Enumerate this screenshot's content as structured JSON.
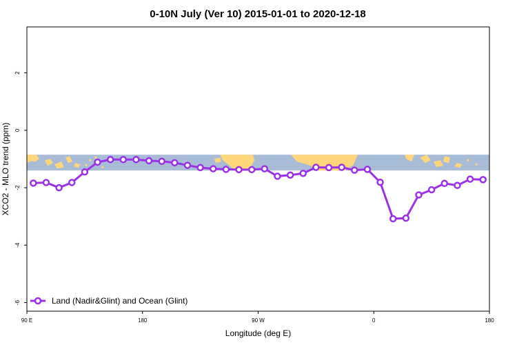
{
  "chart_data": {
    "type": "line",
    "title": "0-10N July (Ver 10)   2015-01-01 to 2020-12-18",
    "xlabel": "Longitude (deg E)",
    "ylabel": "XCO2 - MLO trend (ppm)",
    "xlim": [
      90,
      450
    ],
    "ylim": [
      -6.3,
      3.6
    ],
    "x_ticks": [
      {
        "value": 90,
        "label": "90 E"
      },
      {
        "value": 180,
        "label": "180"
      },
      {
        "value": 270,
        "label": "90 W"
      },
      {
        "value": 360,
        "label": "0"
      },
      {
        "value": 450,
        "label": "180"
      }
    ],
    "y_ticks": [
      {
        "value": 2,
        "label": "2"
      },
      {
        "value": 0,
        "label": "0"
      },
      {
        "value": -2,
        "label": "-2"
      },
      {
        "value": -4,
        "label": "-4"
      },
      {
        "value": -6,
        "label": "-6"
      }
    ],
    "series": [
      {
        "name": "Land (Nadir&Glint) and Ocean (Glint)",
        "color": "#9b30e6",
        "x": [
          95,
          105,
          115,
          125,
          135,
          145,
          155,
          165,
          175,
          185,
          195,
          205,
          215,
          225,
          235,
          245,
          255,
          265,
          275,
          285,
          295,
          305,
          315,
          325,
          335,
          345,
          355,
          365,
          375,
          385,
          395,
          405,
          415,
          425,
          435,
          445
        ],
        "values": [
          -1.84,
          -1.82,
          -2.0,
          -1.82,
          -1.45,
          -1.11,
          -1.02,
          -1.02,
          -1.02,
          -1.06,
          -1.08,
          -1.13,
          -1.22,
          -1.3,
          -1.34,
          -1.36,
          -1.37,
          -1.37,
          -1.34,
          -1.6,
          -1.56,
          -1.5,
          -1.29,
          -1.3,
          -1.29,
          -1.39,
          -1.36,
          -1.81,
          -3.08,
          -3.06,
          -2.25,
          -2.07,
          -1.85,
          -1.92,
          -1.7,
          -1.72
        ]
      }
    ],
    "series_rest_note": "",
    "legend": "bottom-left",
    "grid": false,
    "background_map": {
      "land_color": "#ffd67a",
      "ocean_color": "#a8bcd8",
      "ymin": -1.4,
      "ymax": -0.85
    }
  }
}
